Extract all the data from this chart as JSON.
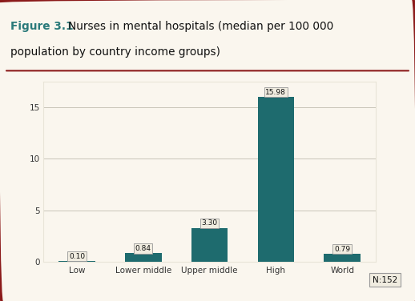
{
  "categories": [
    "Low",
    "Lower middle",
    "Upper middle",
    "High",
    "World"
  ],
  "values": [
    0.1,
    0.84,
    3.3,
    15.98,
    0.79
  ],
  "bar_color": "#1e6b6e",
  "bar_width": 0.55,
  "ylim": [
    0,
    17.5
  ],
  "yticks": [
    0,
    5,
    10,
    15
  ],
  "value_labels": [
    "0.10",
    "0.84",
    "3.30",
    "15.98",
    "0.79"
  ],
  "n_label": "N:152",
  "title_bold": "Figure 3.1",
  "title_normal": "  Nurses in mental hospitals (median per 100 000\n  population by country income groups)",
  "title_color": "#2a7a7a",
  "outer_border_color": "#8b1a1a",
  "plot_bg_color": "#faf6ee",
  "fig_bg_color": "#faf6ee",
  "inner_box_color": "#e8e4d8",
  "grid_color": "#c8c4b8",
  "label_box_facecolor": "#f0ece0",
  "label_box_edgecolor": "#999999",
  "title_fontsize": 9.8,
  "tick_fontsize": 7.5,
  "value_label_fontsize": 6.5,
  "divider_color": "#8b1a1a"
}
